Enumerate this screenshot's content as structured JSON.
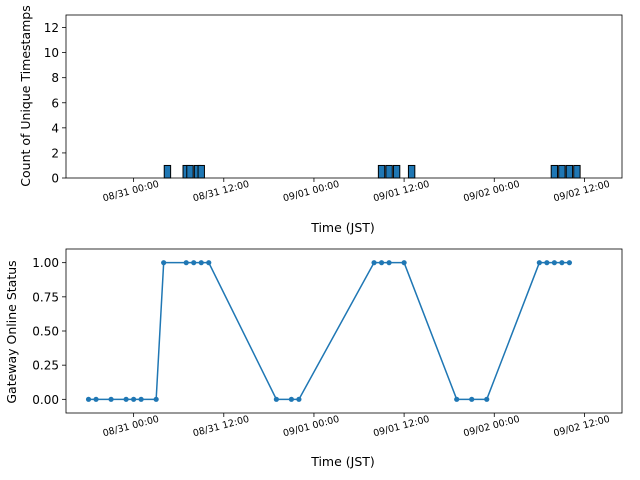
{
  "chart_data": [
    {
      "type": "bar",
      "title": "",
      "xlabel": "Time (JST)",
      "ylabel": "Count of Unique Timestamps",
      "ylim": [
        0,
        13
      ],
      "yticks": [
        0,
        2,
        4,
        6,
        8,
        10,
        12
      ],
      "xticks": [
        "08/31 00:00",
        "08/31 12:00",
        "09/01 00:00",
        "09/01 12:00",
        "09/02 00:00",
        "09/02 12:00"
      ],
      "xlim_hours": [
        -9,
        13
      ],
      "grid": false,
      "bar_color": "#1f77b4",
      "bars": [
        {
          "hour": 4.5,
          "value": 1
        },
        {
          "hour": 7,
          "value": 1
        },
        {
          "hour": 7.5,
          "value": 1
        },
        {
          "hour": 8.5,
          "value": 1
        },
        {
          "hour": 9,
          "value": 1
        },
        {
          "hour": 33,
          "value": 1
        },
        {
          "hour": 34,
          "value": 1
        },
        {
          "hour": 35,
          "value": 1
        },
        {
          "hour": 37,
          "value": 1
        },
        {
          "hour": 56,
          "value": 1
        },
        {
          "hour": 57,
          "value": 1
        },
        {
          "hour": 58,
          "value": 1
        },
        {
          "hour": 59,
          "value": 1
        }
      ]
    },
    {
      "type": "line",
      "title": "",
      "xlabel": "Time (JST)",
      "ylabel": "Gateway Online Status",
      "ylim": [
        -0.1,
        1.1
      ],
      "yticks": [
        "0.00",
        "0.25",
        "0.50",
        "0.75",
        "1.00"
      ],
      "xticks": [
        "08/31 00:00",
        "08/31 12:00",
        "09/01 00:00",
        "09/01 12:00",
        "09/02 00:00",
        "09/02 12:00"
      ],
      "grid": false,
      "line_color": "#1f77b4",
      "points": [
        {
          "hour": -6,
          "value": 0
        },
        {
          "hour": -5,
          "value": 0
        },
        {
          "hour": -3,
          "value": 0
        },
        {
          "hour": -1,
          "value": 0
        },
        {
          "hour": 0,
          "value": 0
        },
        {
          "hour": 1,
          "value": 0
        },
        {
          "hour": 3,
          "value": 0
        },
        {
          "hour": 4,
          "value": 1
        },
        {
          "hour": 7,
          "value": 1
        },
        {
          "hour": 8,
          "value": 1
        },
        {
          "hour": 9,
          "value": 1
        },
        {
          "hour": 10,
          "value": 1
        },
        {
          "hour": 19,
          "value": 0
        },
        {
          "hour": 21,
          "value": 0
        },
        {
          "hour": 22,
          "value": 0
        },
        {
          "hour": 32,
          "value": 1
        },
        {
          "hour": 33,
          "value": 1
        },
        {
          "hour": 34,
          "value": 1
        },
        {
          "hour": 36,
          "value": 1
        },
        {
          "hour": 43,
          "value": 0
        },
        {
          "hour": 45,
          "value": 0
        },
        {
          "hour": 47,
          "value": 0
        },
        {
          "hour": 54,
          "value": 1
        },
        {
          "hour": 55,
          "value": 1
        },
        {
          "hour": 56,
          "value": 1
        },
        {
          "hour": 57,
          "value": 1
        },
        {
          "hour": 58,
          "value": 1
        }
      ]
    }
  ]
}
